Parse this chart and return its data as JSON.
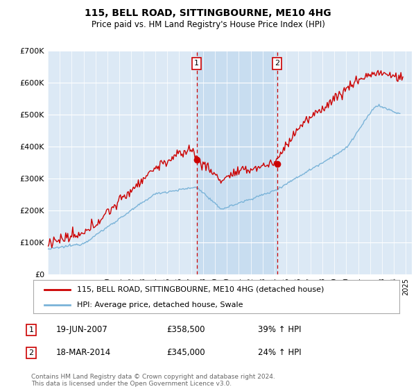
{
  "title": "115, BELL ROAD, SITTINGBOURNE, ME10 4HG",
  "subtitle": "Price paid vs. HM Land Registry's House Price Index (HPI)",
  "ylim": [
    0,
    700000
  ],
  "yticks": [
    0,
    100000,
    200000,
    300000,
    400000,
    500000,
    600000,
    700000
  ],
  "ytick_labels": [
    "£0",
    "£100K",
    "£200K",
    "£300K",
    "£400K",
    "£500K",
    "£600K",
    "£700K"
  ],
  "hpi_color": "#7ab3d8",
  "price_color": "#cc0000",
  "transaction1_year": 2007.463,
  "transaction1_price": 358500,
  "transaction2_year": 2014.205,
  "transaction2_price": 345000,
  "legend_property": "115, BELL ROAD, SITTINGBOURNE, ME10 4HG (detached house)",
  "legend_hpi": "HPI: Average price, detached house, Swale",
  "note1_label": "1",
  "note1_date": "19-JUN-2007",
  "note1_price": "£358,500",
  "note1_hpi": "39% ↑ HPI",
  "note2_label": "2",
  "note2_date": "18-MAR-2014",
  "note2_price": "£345,000",
  "note2_hpi": "24% ↑ HPI",
  "footer": "Contains HM Land Registry data © Crown copyright and database right 2024.\nThis data is licensed under the Open Government Licence v3.0.",
  "background_color": "#ffffff",
  "plot_bg_color": "#dce9f5",
  "highlight_color": "#c8ddf0",
  "grid_color": "#ffffff",
  "xlim_left": 1995.0,
  "xlim_right": 2025.5
}
